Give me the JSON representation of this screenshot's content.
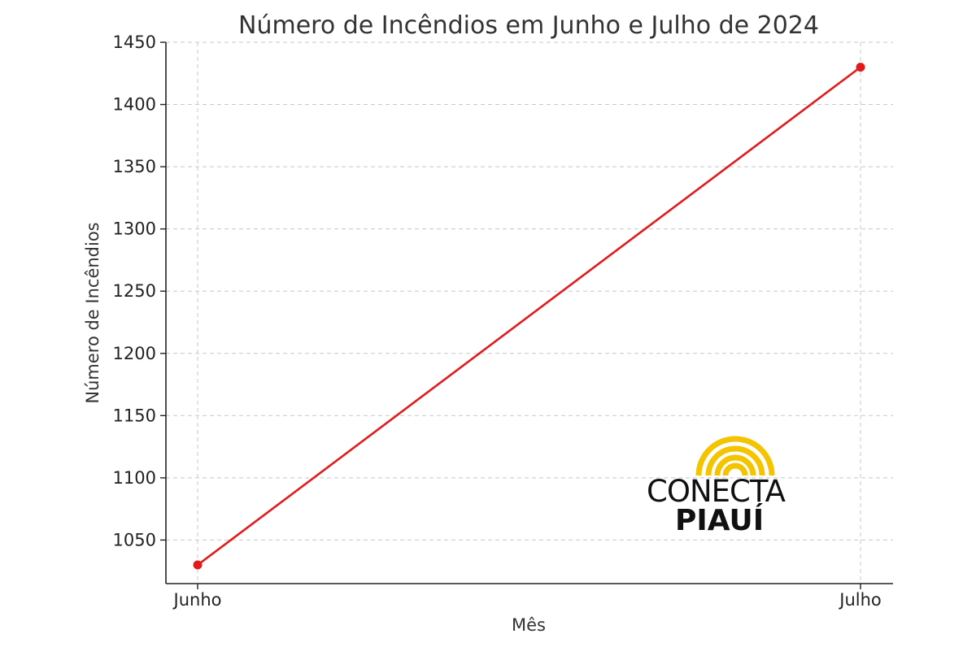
{
  "chart_data": {
    "type": "line",
    "title": "Número de Incêndios em Junho e Julho de 2024",
    "xlabel": "Mês",
    "ylabel": "Número de Incêndios",
    "categories": [
      "Junho",
      "Julho"
    ],
    "series": [
      {
        "values": [
          1030,
          1430
        ],
        "color": "#e31a1c",
        "marker": "circle"
      }
    ],
    "ylim": [
      1015,
      1450
    ],
    "yticks": [
      1050,
      1100,
      1150,
      1200,
      1250,
      1300,
      1350,
      1400,
      1450
    ],
    "ytick_labels": [
      "1050",
      "1100",
      "1150",
      "1200",
      "1250",
      "1300",
      "1350",
      "1400",
      "1450"
    ],
    "grid": true,
    "legend": "none"
  },
  "watermark": {
    "line1": "CONECTA",
    "line2": "PIAUÍ",
    "sun_color": "#f5c400"
  }
}
